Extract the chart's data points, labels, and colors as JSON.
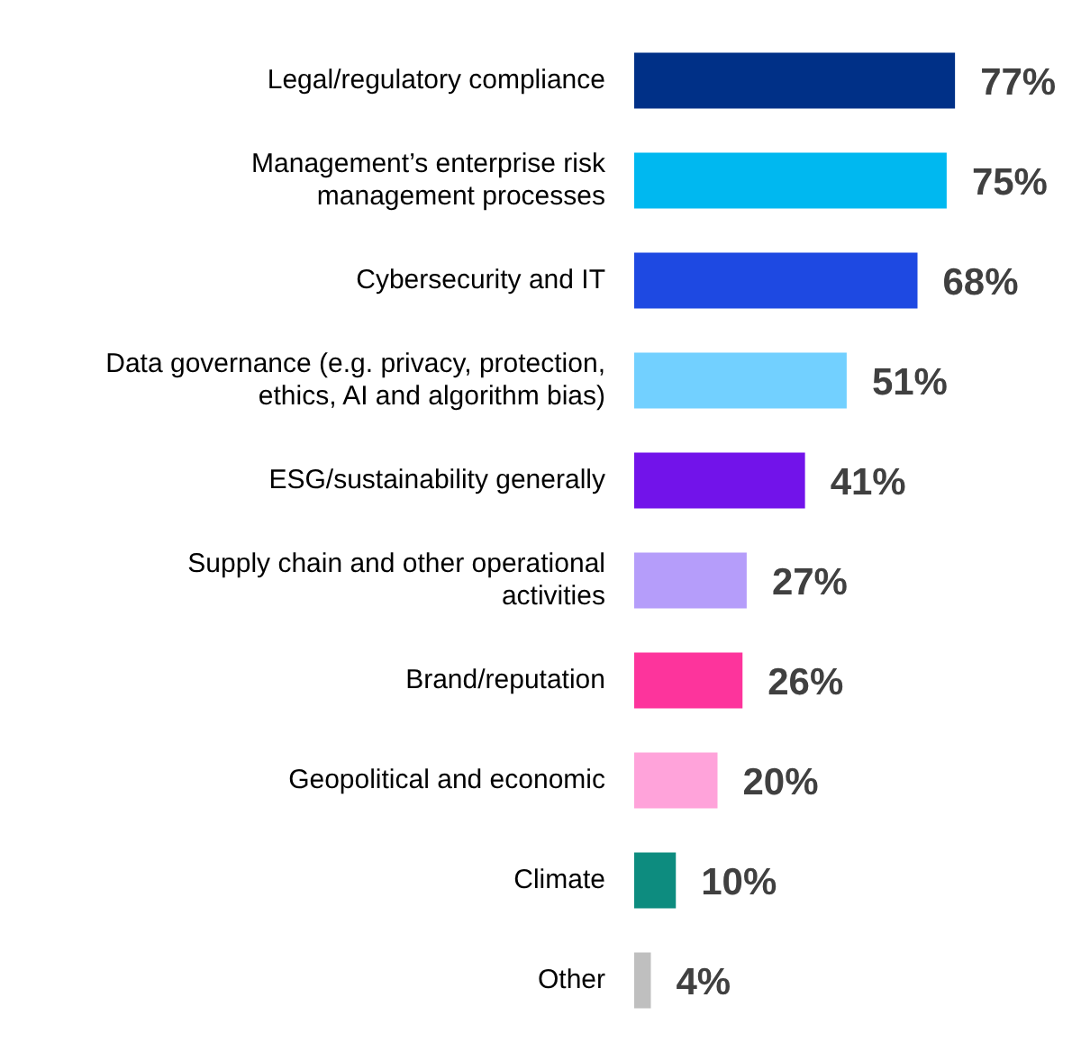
{
  "chart_data": {
    "type": "bar",
    "orientation": "horizontal",
    "categories": [
      "Legal/regulatory compliance",
      "Management’s enterprise risk management processes",
      "Cybersecurity and IT",
      "Data governance (e.g. privacy, protection, ethics, AI and algorithm bias)",
      "ESG/sustainability generally",
      "Supply chain and other operational activities",
      "Brand/reputation",
      "Geopolitical and economic",
      "Climate",
      "Other"
    ],
    "values": [
      77,
      75,
      68,
      51,
      41,
      27,
      26,
      20,
      10,
      4
    ],
    "colors": [
      "#003087",
      "#00b8f0",
      "#1e49e2",
      "#72d0ff",
      "#7213ea",
      "#b59dfa",
      "#fd349c",
      "#ffa3da",
      "#0d8c7f",
      "#bfbfbf"
    ],
    "value_labels": [
      "77%",
      "75%",
      "68%",
      "51%",
      "41%",
      "27%",
      "26%",
      "20%",
      "10%",
      "4%"
    ],
    "tick_labels": "y",
    "legend": false
  }
}
